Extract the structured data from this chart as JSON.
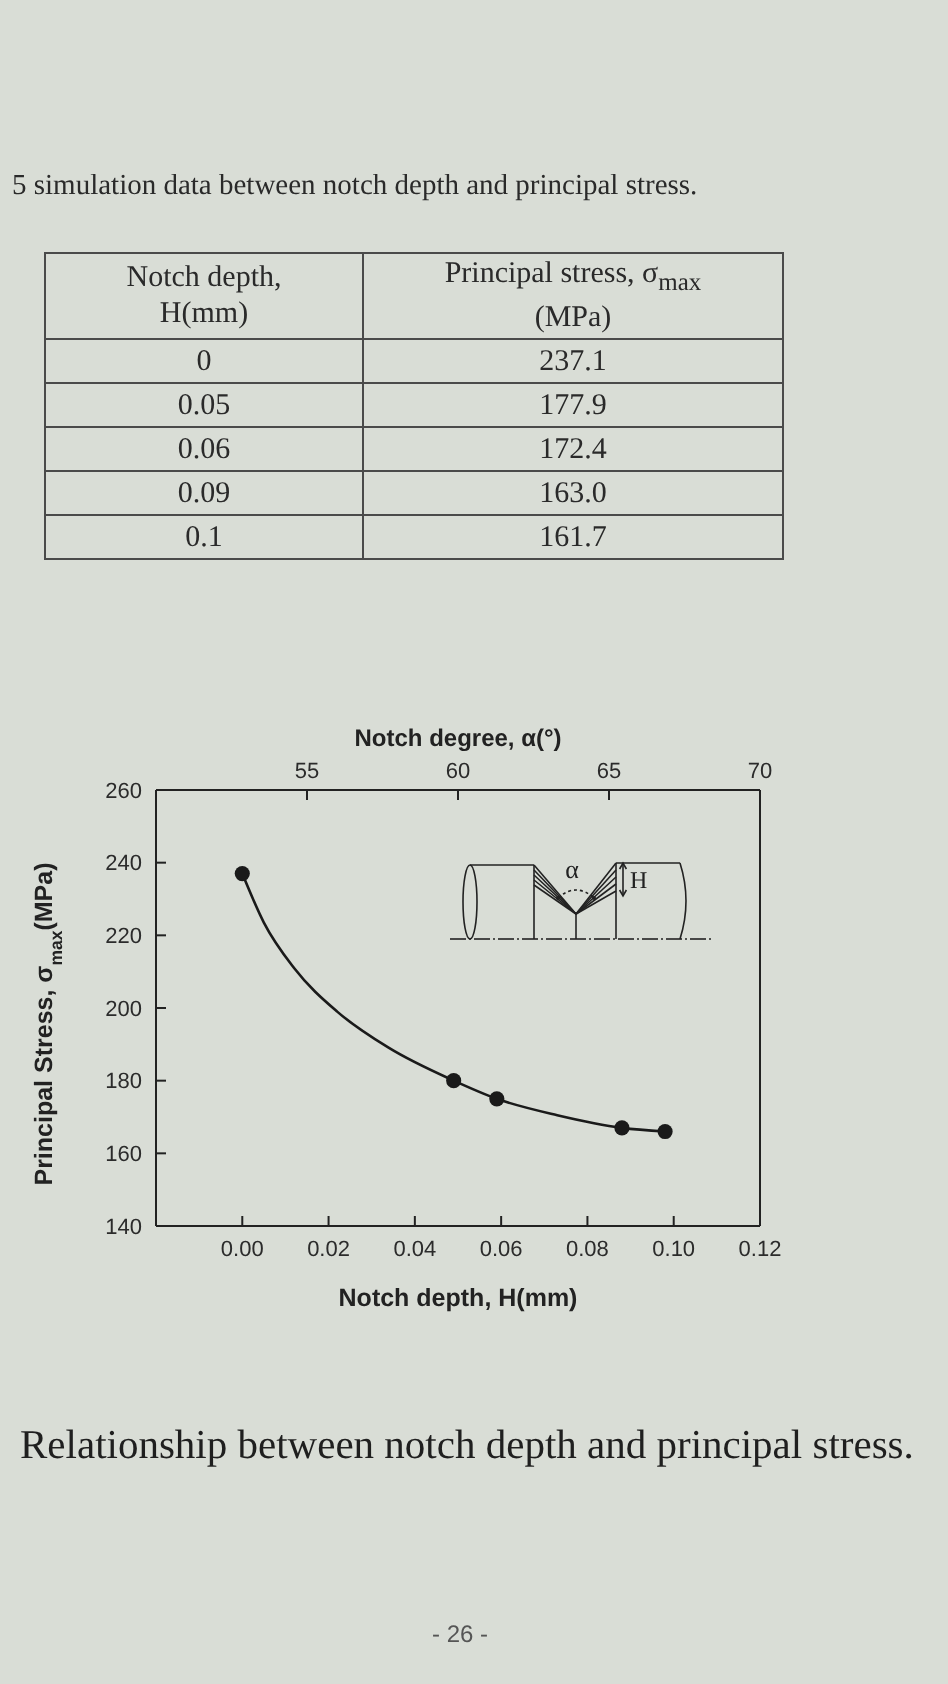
{
  "chart_data": [
    {
      "type": "other",
      "title": "5 simulation data between notch depth and principal stress.",
      "xlabel": "Notch depth, H(mm)",
      "ylabel": "Principal stress, σ$_{max}$ (MPa)",
      "categories": [
        "0",
        "0.05",
        "0.06",
        "0.09",
        "0.1"
      ],
      "values": [
        237.1,
        177.9,
        172.4,
        163.0,
        161.7
      ],
      "value_labels": [
        "237.1",
        "177.9",
        "172.4",
        "163.0",
        "161.7"
      ]
    },
    {
      "type": "scatter",
      "xlabel": "Notch depth, H(mm)",
      "ylabel": "Principal Stress, σ$_{max}$(MPa)",
      "x2label": "Notch degree, α(°)",
      "xlim": [
        -0.02,
        0.12
      ],
      "xticks": [
        {
          "value": 0,
          "label": "0.00"
        },
        0.02,
        0.04,
        0.06,
        0.08,
        {
          "value": 0.1,
          "label": "0.10"
        },
        0.12
      ],
      "x2lim": [
        50,
        70
      ],
      "x2ticks": [
        55,
        60,
        65,
        70
      ],
      "ylim": [
        140,
        260
      ],
      "yticks": [
        140,
        160,
        180,
        200,
        220,
        240,
        260
      ],
      "marker": "circle",
      "line_style": "solid",
      "series": [
        {
          "type": "scatter",
          "color": "#1a1a1a",
          "x": [
            0,
            0.049,
            0.059,
            0.088,
            0.098
          ],
          "values": [
            237,
            180,
            175,
            167,
            166
          ]
        },
        {
          "type": "line",
          "color": "#1a1a1a",
          "marker": "none",
          "x": [
            0,
            0.005,
            0.012,
            0.022,
            0.034,
            0.049,
            0.059,
            0.073,
            0.088,
            0.098
          ],
          "values": [
            237,
            223.5,
            211,
            199,
            189,
            180,
            175,
            170.5,
            167,
            166
          ]
        }
      ],
      "annotations": [
        "α",
        "H",
        "Relationship between notch depth and principal stress.",
        "- 26 -"
      ]
    }
  ]
}
